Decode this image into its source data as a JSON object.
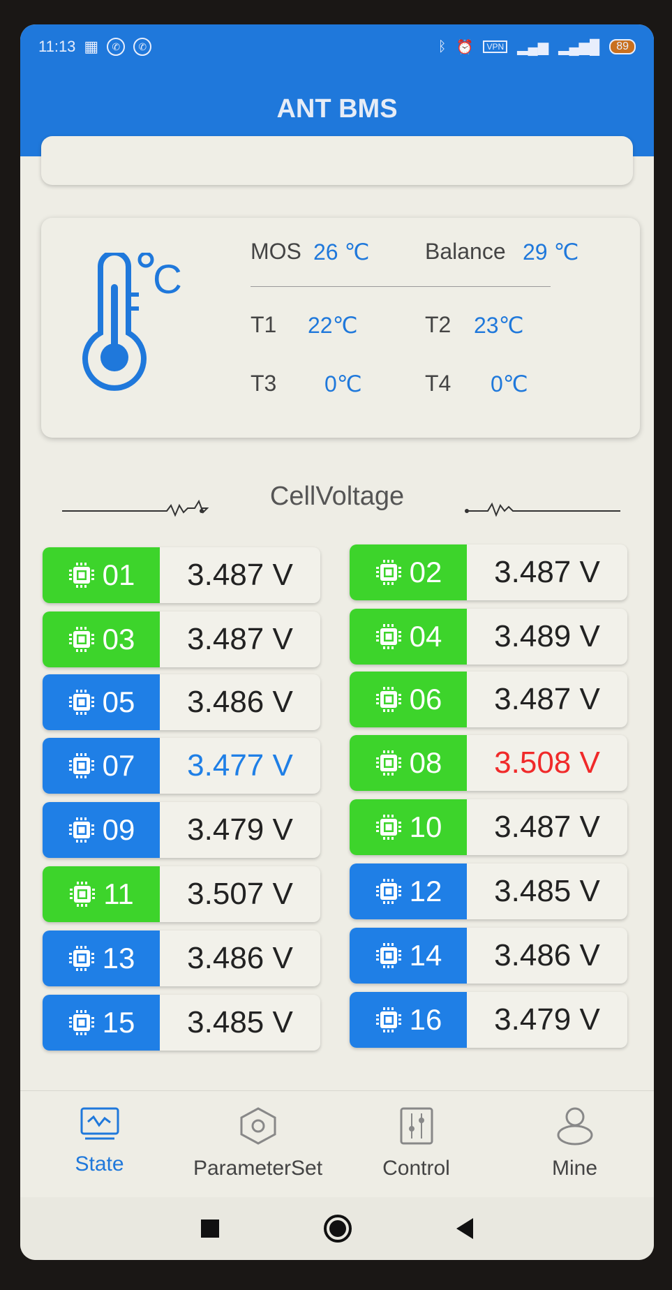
{
  "status_bar": {
    "time": "11:13",
    "vpn": "VPN",
    "battery": "89"
  },
  "header": {
    "title": "ANT BMS"
  },
  "temperature": {
    "mos_label": "MOS",
    "mos_value": "26 ℃",
    "balance_label": "Balance",
    "balance_value": "29 ℃",
    "t1_label": "T1",
    "t1_value": "22℃",
    "t2_label": "T2",
    "t2_value": "23℃",
    "t3_label": "T3",
    "t3_value": "0℃",
    "t4_label": "T4",
    "t4_value": "0℃"
  },
  "cell_voltage": {
    "title": "CellVoltage",
    "cells": [
      {
        "id": "01",
        "voltage": "3.487 V",
        "tag": "green",
        "text": "normal"
      },
      {
        "id": "02",
        "voltage": "3.487 V",
        "tag": "green",
        "text": "normal"
      },
      {
        "id": "03",
        "voltage": "3.487 V",
        "tag": "green",
        "text": "normal"
      },
      {
        "id": "04",
        "voltage": "3.489 V",
        "tag": "green",
        "text": "normal"
      },
      {
        "id": "05",
        "voltage": "3.486 V",
        "tag": "blue",
        "text": "normal"
      },
      {
        "id": "06",
        "voltage": "3.487 V",
        "tag": "green",
        "text": "normal"
      },
      {
        "id": "07",
        "voltage": "3.477 V",
        "tag": "blue",
        "text": "min"
      },
      {
        "id": "08",
        "voltage": "3.508 V",
        "tag": "green",
        "text": "max"
      },
      {
        "id": "09",
        "voltage": "3.479 V",
        "tag": "blue",
        "text": "normal"
      },
      {
        "id": "10",
        "voltage": "3.487 V",
        "tag": "green",
        "text": "normal"
      },
      {
        "id": "11",
        "voltage": "3.507 V",
        "tag": "green",
        "text": "normal"
      },
      {
        "id": "12",
        "voltage": "3.485 V",
        "tag": "blue",
        "text": "normal"
      },
      {
        "id": "13",
        "voltage": "3.486 V",
        "tag": "blue",
        "text": "normal"
      },
      {
        "id": "14",
        "voltage": "3.486 V",
        "tag": "blue",
        "text": "normal"
      },
      {
        "id": "15",
        "voltage": "3.485 V",
        "tag": "blue",
        "text": "normal"
      },
      {
        "id": "16",
        "voltage": "3.479 V",
        "tag": "blue",
        "text": "normal"
      }
    ]
  },
  "colors": {
    "green": "#3dd42b",
    "blue": "#1f7fe6",
    "min": "#1f7fe6",
    "max": "#f02a2a",
    "normal": "#222222",
    "accent": "#1f78db"
  },
  "bottom_nav": [
    {
      "label": "State",
      "icon": "monitor-pulse-icon",
      "active": true
    },
    {
      "label": "ParameterSet",
      "icon": "hex-nut-icon",
      "active": false
    },
    {
      "label": "Control",
      "icon": "sliders-icon",
      "active": false
    },
    {
      "label": "Mine",
      "icon": "person-icon",
      "active": false
    }
  ]
}
